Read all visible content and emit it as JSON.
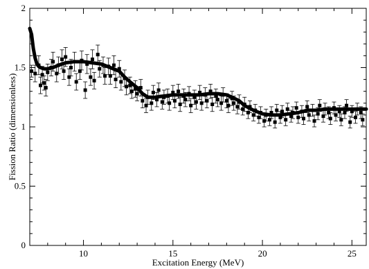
{
  "chart_data": {
    "type": "scatter",
    "title": "",
    "xlabel": "Excitation Energy (MeV)",
    "ylabel": "Fission Ratio (dimensionless)",
    "xlim": [
      7,
      25.8
    ],
    "ylim": [
      0,
      2
    ],
    "x_ticks": [
      10,
      15,
      20,
      25
    ],
    "x_tick_labels": [
      "10",
      "15",
      "20",
      "25"
    ],
    "y_ticks": [
      0,
      0.5,
      1,
      1.5,
      2
    ],
    "y_tick_labels": [
      "0",
      "0.5",
      "1",
      "1.5",
      "2"
    ],
    "grid": false,
    "series": [
      {
        "style": "points-with-error-bars",
        "color": "#000000",
        "points": [
          [
            7.1,
            1.47,
            0.05
          ],
          [
            7.3,
            1.45,
            0.07
          ],
          [
            7.5,
            1.52,
            0.08
          ],
          [
            7.6,
            1.35,
            0.07
          ],
          [
            7.7,
            1.44,
            0.07
          ],
          [
            7.8,
            1.37,
            0.06
          ],
          [
            7.9,
            1.33,
            0.07
          ],
          [
            8.0,
            1.46,
            0.07
          ],
          [
            8.2,
            1.5,
            0.07
          ],
          [
            8.3,
            1.55,
            0.08
          ],
          [
            8.5,
            1.45,
            0.07
          ],
          [
            8.6,
            1.52,
            0.07
          ],
          [
            8.8,
            1.57,
            0.08
          ],
          [
            8.9,
            1.47,
            0.07
          ],
          [
            9.0,
            1.59,
            0.08
          ],
          [
            9.2,
            1.42,
            0.07
          ],
          [
            9.3,
            1.5,
            0.07
          ],
          [
            9.5,
            1.55,
            0.08
          ],
          [
            9.6,
            1.38,
            0.07
          ],
          [
            9.8,
            1.47,
            0.07
          ],
          [
            9.9,
            1.56,
            0.08
          ],
          [
            10.1,
            1.31,
            0.07
          ],
          [
            10.2,
            1.53,
            0.08
          ],
          [
            10.4,
            1.42,
            0.07
          ],
          [
            10.5,
            1.57,
            0.08
          ],
          [
            10.6,
            1.39,
            0.07
          ],
          [
            10.8,
            1.61,
            0.08
          ],
          [
            10.9,
            1.49,
            0.07
          ],
          [
            11.1,
            1.52,
            0.07
          ],
          [
            11.2,
            1.43,
            0.07
          ],
          [
            11.4,
            1.51,
            0.07
          ],
          [
            11.5,
            1.43,
            0.07
          ],
          [
            11.7,
            1.52,
            0.08
          ],
          [
            11.8,
            1.4,
            0.07
          ],
          [
            12.0,
            1.49,
            0.07
          ],
          [
            12.1,
            1.38,
            0.07
          ],
          [
            12.3,
            1.41,
            0.07
          ],
          [
            12.4,
            1.34,
            0.07
          ],
          [
            12.6,
            1.35,
            0.07
          ],
          [
            12.7,
            1.3,
            0.06
          ],
          [
            12.9,
            1.32,
            0.07
          ],
          [
            13.0,
            1.28,
            0.06
          ],
          [
            13.2,
            1.33,
            0.07
          ],
          [
            13.3,
            1.22,
            0.06
          ],
          [
            13.5,
            1.18,
            0.06
          ],
          [
            13.6,
            1.25,
            0.06
          ],
          [
            13.8,
            1.2,
            0.06
          ],
          [
            13.9,
            1.29,
            0.06
          ],
          [
            14.1,
            1.23,
            0.06
          ],
          [
            14.2,
            1.31,
            0.06
          ],
          [
            14.4,
            1.21,
            0.06
          ],
          [
            14.5,
            1.25,
            0.06
          ],
          [
            14.7,
            1.26,
            0.06
          ],
          [
            14.8,
            1.2,
            0.06
          ],
          [
            15.0,
            1.29,
            0.06
          ],
          [
            15.1,
            1.22,
            0.06
          ],
          [
            15.3,
            1.3,
            0.06
          ],
          [
            15.4,
            1.19,
            0.06
          ],
          [
            15.6,
            1.26,
            0.06
          ],
          [
            15.7,
            1.23,
            0.06
          ],
          [
            15.9,
            1.28,
            0.06
          ],
          [
            16.0,
            1.18,
            0.06
          ],
          [
            16.2,
            1.25,
            0.06
          ],
          [
            16.3,
            1.21,
            0.06
          ],
          [
            16.5,
            1.29,
            0.06
          ],
          [
            16.6,
            1.2,
            0.06
          ],
          [
            16.8,
            1.27,
            0.06
          ],
          [
            16.9,
            1.22,
            0.06
          ],
          [
            17.1,
            1.3,
            0.06
          ],
          [
            17.2,
            1.19,
            0.06
          ],
          [
            17.4,
            1.26,
            0.06
          ],
          [
            17.5,
            1.23,
            0.06
          ],
          [
            17.7,
            1.2,
            0.06
          ],
          [
            17.8,
            1.27,
            0.06
          ],
          [
            18.0,
            1.22,
            0.06
          ],
          [
            18.1,
            1.18,
            0.06
          ],
          [
            18.3,
            1.24,
            0.06
          ],
          [
            18.4,
            1.2,
            0.06
          ],
          [
            18.6,
            1.17,
            0.06
          ],
          [
            18.7,
            1.21,
            0.06
          ],
          [
            18.9,
            1.15,
            0.05
          ],
          [
            19.0,
            1.19,
            0.06
          ],
          [
            19.2,
            1.12,
            0.05
          ],
          [
            19.3,
            1.17,
            0.05
          ],
          [
            19.5,
            1.1,
            0.05
          ],
          [
            19.6,
            1.14,
            0.05
          ],
          [
            19.8,
            1.08,
            0.05
          ],
          [
            19.9,
            1.12,
            0.05
          ],
          [
            20.1,
            1.05,
            0.05
          ],
          [
            20.2,
            1.1,
            0.05
          ],
          [
            20.4,
            1.06,
            0.05
          ],
          [
            20.5,
            1.12,
            0.05
          ],
          [
            20.7,
            1.04,
            0.05
          ],
          [
            20.8,
            1.14,
            0.05
          ],
          [
            21.0,
            1.08,
            0.05
          ],
          [
            21.1,
            1.13,
            0.05
          ],
          [
            21.3,
            1.06,
            0.05
          ],
          [
            21.4,
            1.15,
            0.05
          ],
          [
            21.6,
            1.09,
            0.05
          ],
          [
            21.7,
            1.12,
            0.05
          ],
          [
            21.9,
            1.16,
            0.05
          ],
          [
            22.0,
            1.08,
            0.05
          ],
          [
            22.2,
            1.13,
            0.05
          ],
          [
            22.3,
            1.07,
            0.05
          ],
          [
            22.5,
            1.17,
            0.05
          ],
          [
            22.6,
            1.1,
            0.05
          ],
          [
            22.8,
            1.14,
            0.05
          ],
          [
            22.9,
            1.05,
            0.05
          ],
          [
            23.1,
            1.11,
            0.05
          ],
          [
            23.2,
            1.18,
            0.05
          ],
          [
            23.4,
            1.09,
            0.05
          ],
          [
            23.5,
            1.15,
            0.05
          ],
          [
            23.7,
            1.12,
            0.05
          ],
          [
            23.8,
            1.07,
            0.05
          ],
          [
            24.0,
            1.16,
            0.05
          ],
          [
            24.1,
            1.1,
            0.05
          ],
          [
            24.3,
            1.13,
            0.05
          ],
          [
            24.4,
            1.06,
            0.05
          ],
          [
            24.6,
            1.12,
            0.05
          ],
          [
            24.7,
            1.18,
            0.05
          ],
          [
            24.9,
            1.04,
            0.05
          ],
          [
            25.0,
            1.13,
            0.05
          ],
          [
            25.2,
            1.08,
            0.05
          ],
          [
            25.3,
            1.15,
            0.05
          ],
          [
            25.5,
            1.12,
            0.05
          ],
          [
            25.6,
            1.06,
            0.05
          ]
        ]
      },
      {
        "style": "thick-line",
        "color": "#000000",
        "x": [
          7.0,
          7.1,
          7.2,
          7.3,
          7.4,
          7.5,
          7.6,
          7.8,
          8.0,
          8.3,
          8.6,
          9.0,
          9.5,
          10.0,
          10.5,
          11.0,
          11.5,
          12.0,
          12.3,
          12.6,
          13.0,
          13.3,
          13.6,
          14.0,
          14.5,
          15.0,
          15.5,
          16.0,
          16.5,
          17.0,
          17.5,
          18.0,
          18.3,
          18.7,
          19.0,
          19.5,
          20.0,
          20.5,
          21.0,
          21.5,
          22.0,
          22.5,
          23.0,
          23.5,
          24.0,
          24.5,
          25.0,
          25.5,
          25.8
        ],
        "y": [
          1.83,
          1.78,
          1.66,
          1.58,
          1.53,
          1.51,
          1.5,
          1.49,
          1.49,
          1.5,
          1.52,
          1.54,
          1.55,
          1.55,
          1.54,
          1.53,
          1.5,
          1.47,
          1.42,
          1.38,
          1.33,
          1.28,
          1.25,
          1.25,
          1.26,
          1.27,
          1.27,
          1.27,
          1.27,
          1.28,
          1.28,
          1.27,
          1.25,
          1.22,
          1.18,
          1.14,
          1.11,
          1.1,
          1.1,
          1.11,
          1.12,
          1.14,
          1.14,
          1.15,
          1.15,
          1.15,
          1.15,
          1.15,
          1.15
        ]
      }
    ]
  }
}
